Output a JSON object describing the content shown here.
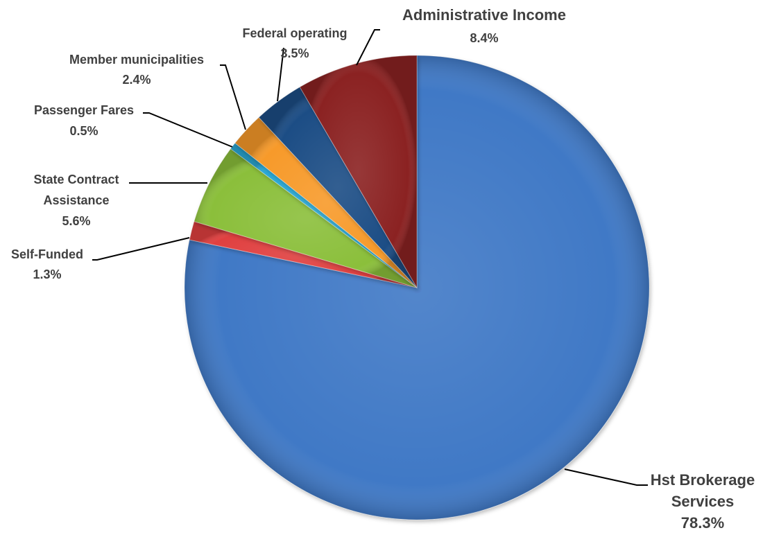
{
  "chart_data": {
    "type": "pie",
    "start_angle_deg": 0,
    "direction": "clockwise",
    "slices": [
      {
        "label": "Hst Brokerage Services",
        "label_lines": [
          "Hst Brokerage",
          "Services"
        ],
        "value_label": "78.3%",
        "value": 78.3,
        "color": "#3f79c6"
      },
      {
        "label": "Self-Funded",
        "label_lines": [
          "Self-Funded"
        ],
        "value_label": "1.3%",
        "value": 1.3,
        "color": "#e0403f"
      },
      {
        "label": "State Contract Assistance",
        "label_lines": [
          "State Contract",
          "Assistance"
        ],
        "value_label": "5.6%",
        "value": 5.6,
        "color": "#8bbf3a"
      },
      {
        "label": "Passenger Fares",
        "label_lines": [
          "Passenger Fares"
        ],
        "value_label": "0.5%",
        "value": 0.5,
        "color": "#2aa9d6"
      },
      {
        "label": "Member municipalities",
        "label_lines": [
          "Member municipalities"
        ],
        "value_label": "2.4%",
        "value": 2.4,
        "color": "#f79a2c"
      },
      {
        "label": "Federal operating",
        "label_lines": [
          "Federal operating"
        ],
        "value_label": "3.5%",
        "value": 3.5,
        "color": "#1f4e85"
      },
      {
        "label": "Administrative Income",
        "label_lines": [
          "Administrative Income"
        ],
        "value_label": "8.4%",
        "value": 8.4,
        "color": "#8b2020"
      }
    ]
  }
}
